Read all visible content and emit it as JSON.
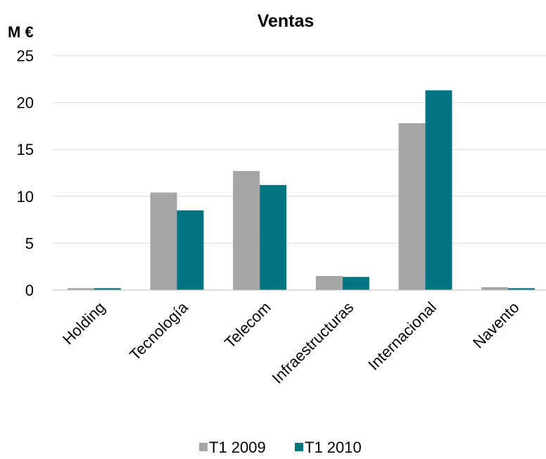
{
  "chart_data": {
    "type": "bar",
    "title": "Ventas",
    "ylabel": "M €",
    "xlabel": "",
    "categories": [
      "Holding",
      "Tecnología",
      "Telecom",
      "Infraestructuras",
      "Internacional",
      "Navento"
    ],
    "series": [
      {
        "name": "T1 2009",
        "color": "#a6a6a6",
        "values": [
          0.2,
          10.4,
          12.7,
          1.5,
          17.8,
          0.3
        ]
      },
      {
        "name": "T1 2010",
        "color": "#007582",
        "values": [
          0.2,
          8.5,
          11.2,
          1.4,
          21.3,
          0.2
        ]
      }
    ],
    "ylim": [
      0,
      25
    ],
    "yticks": [
      "0",
      "5",
      "10",
      "15",
      "20",
      "25"
    ],
    "ytick_values": [
      0,
      5,
      10,
      15,
      20,
      25
    ],
    "grid": true,
    "legend_position": "bottom"
  }
}
